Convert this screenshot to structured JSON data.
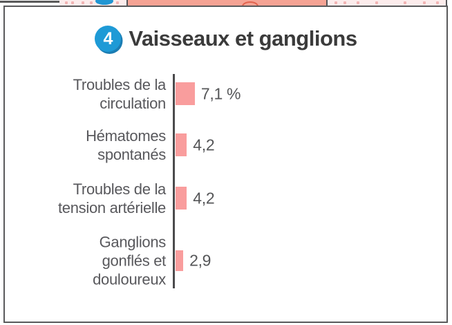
{
  "page": {
    "badge_number": "4",
    "title": "Vaisseaux et ganglions"
  },
  "chart_data": {
    "type": "bar",
    "orientation": "horizontal",
    "title": "Vaisseaux et ganglions",
    "unit": "%",
    "categories": [
      "Troubles de la circulation",
      "Hématomes spontanés",
      "Troubles de la tension artérielle",
      "Ganglions gonflés et douloureux"
    ],
    "category_lines": [
      [
        "Troubles de la",
        "circulation"
      ],
      [
        "Hématomes",
        "spontanés"
      ],
      [
        "Troubles de la",
        "tension artérielle"
      ],
      [
        "Ganglions",
        "gonflés et",
        "douloureux"
      ]
    ],
    "values": [
      7.1,
      4.2,
      4.2,
      2.9
    ],
    "value_labels": [
      "7,1 %",
      "4,2",
      "4,2",
      "2,9"
    ],
    "xlim": [
      0,
      10
    ],
    "grid": false,
    "legend": false,
    "bar_color": "#f99d9d",
    "axis_color": "#4a4a4c",
    "label_color": "#58585c"
  },
  "colors": {
    "frame_border": "#59595b",
    "badge_blue": "#1e9ad6",
    "badge_shadow_blue": "#1b7db3",
    "title_text": "#3b3b3b",
    "strip_salmon": "#f5a394",
    "strip_light_pink": "#fcecec",
    "strip_dash_pink": "#f2b4b4",
    "strip_blue": "#2196d3",
    "strip_orange": "#e2634e"
  }
}
